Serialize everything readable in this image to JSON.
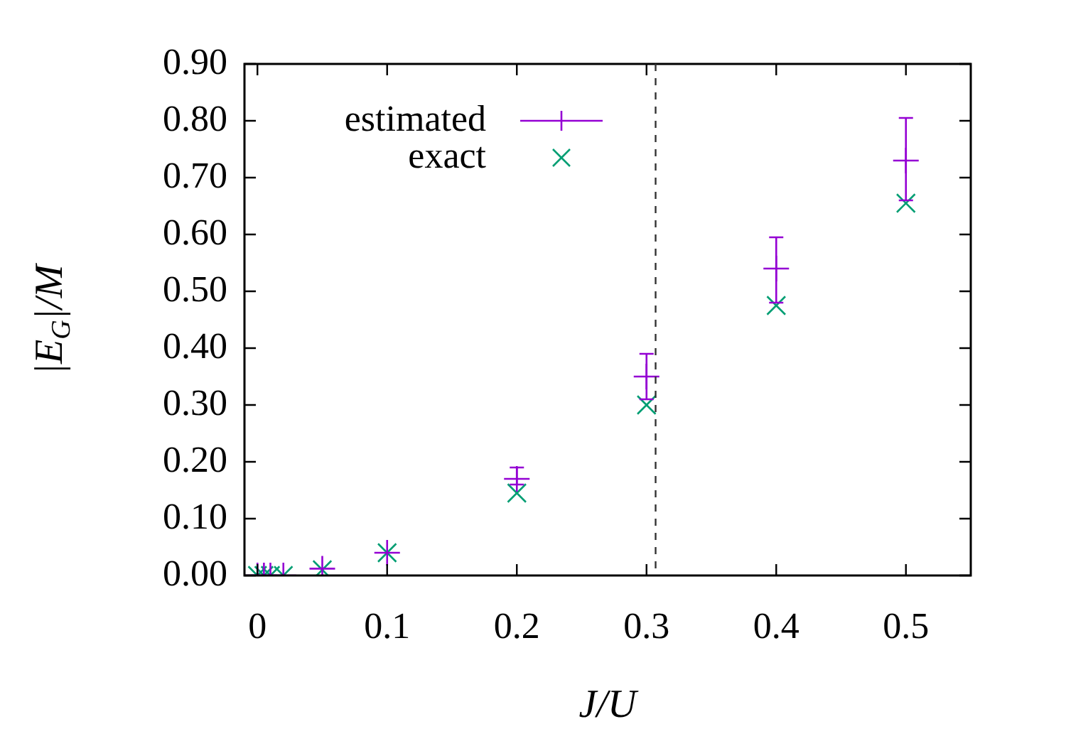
{
  "chart_data": {
    "type": "scatter",
    "xlabel": "J/U",
    "ylabel": "|E$_{G}$|/M",
    "legend": "top left",
    "series": [
      {
        "name": "estimated",
        "color": "#9400d3",
        "x": [
          0,
          0.005,
          0.01,
          0.02,
          0.05,
          0.1,
          0.2,
          0.3,
          0.4,
          0.5
        ],
        "values": [
          0,
          0,
          0,
          0,
          0.012,
          0.04,
          0.17,
          0.35,
          0.54,
          0.73
        ],
        "errors": [
          null,
          null,
          null,
          null,
          null,
          null,
          [
            0.16,
            0.19
          ],
          [
            0.31,
            0.39
          ],
          [
            0.48,
            0.595
          ],
          [
            0.66,
            0.805
          ]
        ]
      },
      {
        "name": "exact",
        "color": "#009e73",
        "marker": "cross",
        "x": [
          0,
          0.005,
          0.01,
          0.02,
          0.05,
          0.1,
          0.2,
          0.3,
          0.4,
          0.5
        ],
        "values": [
          0,
          0,
          0,
          0,
          0.01,
          0.04,
          0.145,
          0.3,
          0.475,
          0.655
        ]
      }
    ],
    "xlim": [
      -0.01,
      0.55
    ],
    "xticks": [
      0,
      0.1,
      0.2,
      0.3,
      0.4,
      0.5
    ],
    "ylim": [
      0,
      0.9
    ],
    "yticks": [
      {
        "value": 0,
        "label": "0.00"
      },
      {
        "value": 0.1,
        "label": "0.10"
      },
      {
        "value": 0.2,
        "label": "0.20"
      },
      {
        "value": 0.3,
        "label": "0.30"
      },
      {
        "value": 0.4,
        "label": "0.40"
      },
      {
        "value": 0.5,
        "label": "0.50"
      },
      {
        "value": 0.6,
        "label": "0.60"
      },
      {
        "value": 0.7,
        "label": "0.70"
      },
      {
        "value": 0.8,
        "label": "0.80"
      },
      {
        "value": 0.9,
        "label": "0.90"
      }
    ],
    "ref_lines": [
      {
        "axis": "x",
        "value": 0.307,
        "line_style": "dashed",
        "color": "#333333"
      }
    ]
  }
}
